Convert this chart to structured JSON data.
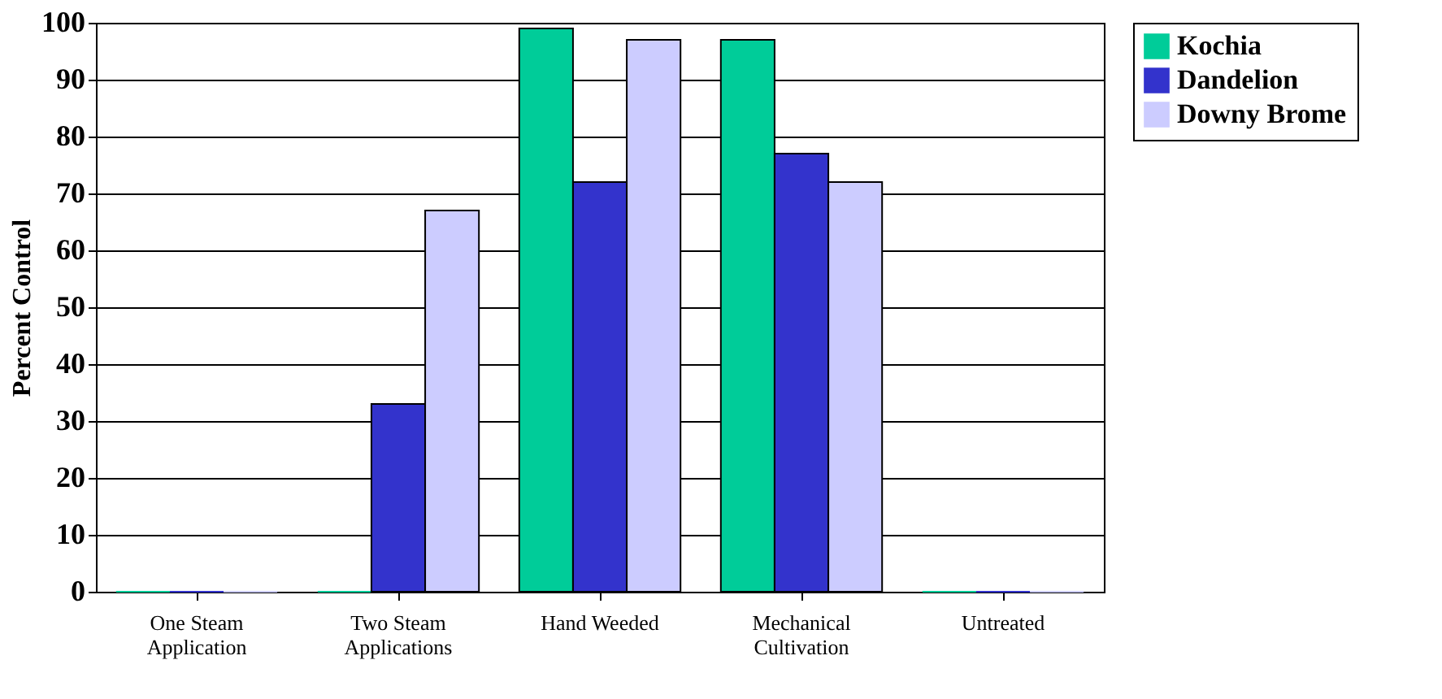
{
  "chart_data": {
    "type": "bar",
    "ylabel": "Percent Control",
    "categories": [
      "One Steam Application",
      "Two Steam Applications",
      "Hand Weeded",
      "Mechanical Cultivation",
      "Untreated"
    ],
    "series": [
      {
        "name": "Kochia",
        "color": "#00cc99",
        "values": [
          0,
          0,
          99,
          97,
          0
        ]
      },
      {
        "name": "Dandelion",
        "color": "#3333cc",
        "values": [
          0,
          33,
          72,
          77,
          0
        ]
      },
      {
        "name": "Downy Brome",
        "color": "#ccccff",
        "values": [
          0,
          67,
          97,
          72,
          0
        ]
      }
    ],
    "ylim": [
      0,
      100
    ],
    "yticks": [
      0,
      10,
      20,
      30,
      40,
      50,
      60,
      70,
      80,
      90,
      100
    ],
    "grid": "y",
    "legend": "right"
  }
}
